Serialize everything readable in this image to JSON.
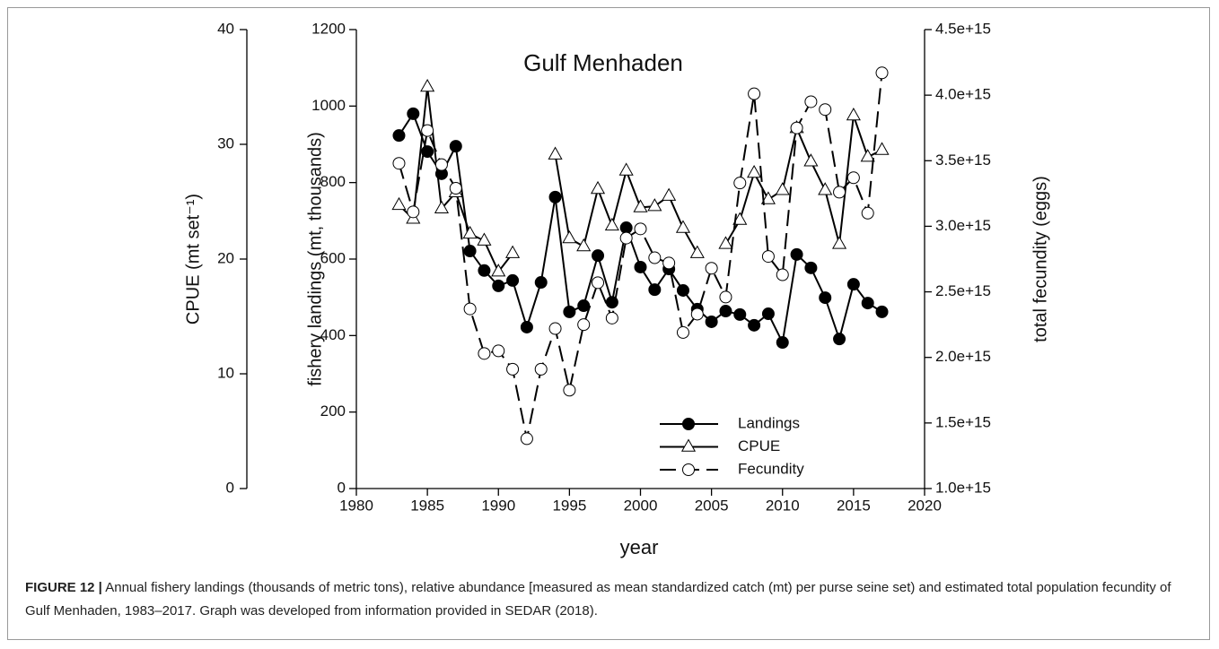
{
  "chart_data": {
    "type": "line",
    "title": "Gulf Menhaden",
    "xlabel": "year",
    "ylabel": "fishery landings (mt, thousands)",
    "y2label": "total fecundity (eggs)",
    "y3label": "CPUE (mt set⁻¹)",
    "x": [
      1983,
      1984,
      1985,
      1986,
      1987,
      1988,
      1989,
      1990,
      1991,
      1992,
      1993,
      1994,
      1995,
      1996,
      1997,
      1998,
      1999,
      2000,
      2001,
      2002,
      2003,
      2004,
      2005,
      2006,
      2007,
      2008,
      2009,
      2010,
      2011,
      2012,
      2013,
      2014,
      2015,
      2016,
      2017
    ],
    "xlim": [
      1980,
      2020
    ],
    "xticks": [
      1980,
      1985,
      1990,
      1995,
      2000,
      2005,
      2010,
      2015,
      2020
    ],
    "ylim": [
      0,
      1200
    ],
    "yticks": [
      0,
      200,
      400,
      600,
      800,
      1000,
      1200
    ],
    "y2lim": [
      1000000000000000.0,
      4500000000000000.0
    ],
    "y2ticks": [
      {
        "value": 1000000000000000.0,
        "label": "1.0e+15"
      },
      {
        "value": 1500000000000000.0,
        "label": "1.5e+15"
      },
      {
        "value": 2000000000000000.0,
        "label": "2.0e+15"
      },
      {
        "value": 2500000000000000.0,
        "label": "2.5e+15"
      },
      {
        "value": 3000000000000000.0,
        "label": "3.0e+15"
      },
      {
        "value": 3500000000000000.0,
        "label": "3.5e+15"
      },
      {
        "value": 4000000000000000.0,
        "label": "4.0e+15"
      },
      {
        "value": 4500000000000000.0,
        "label": "4.5e+15"
      }
    ],
    "y3lim": [
      0,
      40
    ],
    "y3ticks": [
      0,
      10,
      20,
      30,
      40
    ],
    "series": [
      {
        "name": "Landings",
        "color": "#000000",
        "marker": "circle-filled",
        "dash": false,
        "axis": "y",
        "values": [
          923,
          980,
          881,
          823,
          895,
          621,
          570,
          530,
          544,
          422,
          539,
          762,
          462,
          478,
          609,
          487,
          682,
          579,
          520,
          574,
          518,
          469,
          436,
          464,
          455,
          427,
          457,
          382,
          612,
          577,
          499,
          391,
          534,
          485,
          462
        ]
      },
      {
        "name": "CPUE",
        "color": "#000000",
        "marker": "triangle-open",
        "dash": false,
        "axis": "y3",
        "values": [
          24.7,
          23.5,
          35.0,
          24.4,
          25.8,
          22.2,
          21.6,
          18.9,
          20.5,
          null,
          null,
          29.1,
          21.8,
          21.1,
          26.1,
          22.9,
          27.7,
          24.5,
          24.6,
          25.5,
          22.7,
          20.5,
          null,
          21.3,
          23.4,
          27.5,
          25.2,
          26.0,
          31.4,
          28.5,
          26.0,
          21.3,
          32.5,
          28.9,
          29.5
        ]
      },
      {
        "name": "Fecundity",
        "color": "#000000",
        "marker": "circle-open",
        "dash": true,
        "axis": "y2",
        "values": [
          3480000000000000.0,
          3110000000000000.0,
          3730000000000000.0,
          3470000000000000.0,
          3290000000000000.0,
          2370000000000000.0,
          2030000000000000.0,
          2050000000000000.0,
          1910000000000000.0,
          1380000000000000.0,
          1910000000000000.0,
          2220000000000000.0,
          1750000000000000.0,
          2250000000000000.0,
          2570000000000000.0,
          2300000000000000.0,
          2910000000000000.0,
          2980000000000000.0,
          2760000000000000.0,
          2720000000000000.0,
          2190000000000000.0,
          2330000000000000.0,
          2680000000000000.0,
          2460000000000000.0,
          3330000000000000.0,
          4010000000000000.0,
          2770000000000000.0,
          2630000000000000.0,
          3750000000000000.0,
          3950000000000000.0,
          3890000000000000.0,
          3260000000000000.0,
          3370000000000000.0,
          3100000000000000.0,
          4170000000000000.0
        ]
      }
    ]
  },
  "caption": {
    "label": "FIGURE 12 |",
    "text": "Annual fishery landings (thousands of metric tons), relative abundance [measured as mean standardized catch (mt) per purse seine set) and estimated total population fecundity of Gulf Menhaden, 1983–2017. Graph was developed from information provided in SEDAR (2018)."
  }
}
